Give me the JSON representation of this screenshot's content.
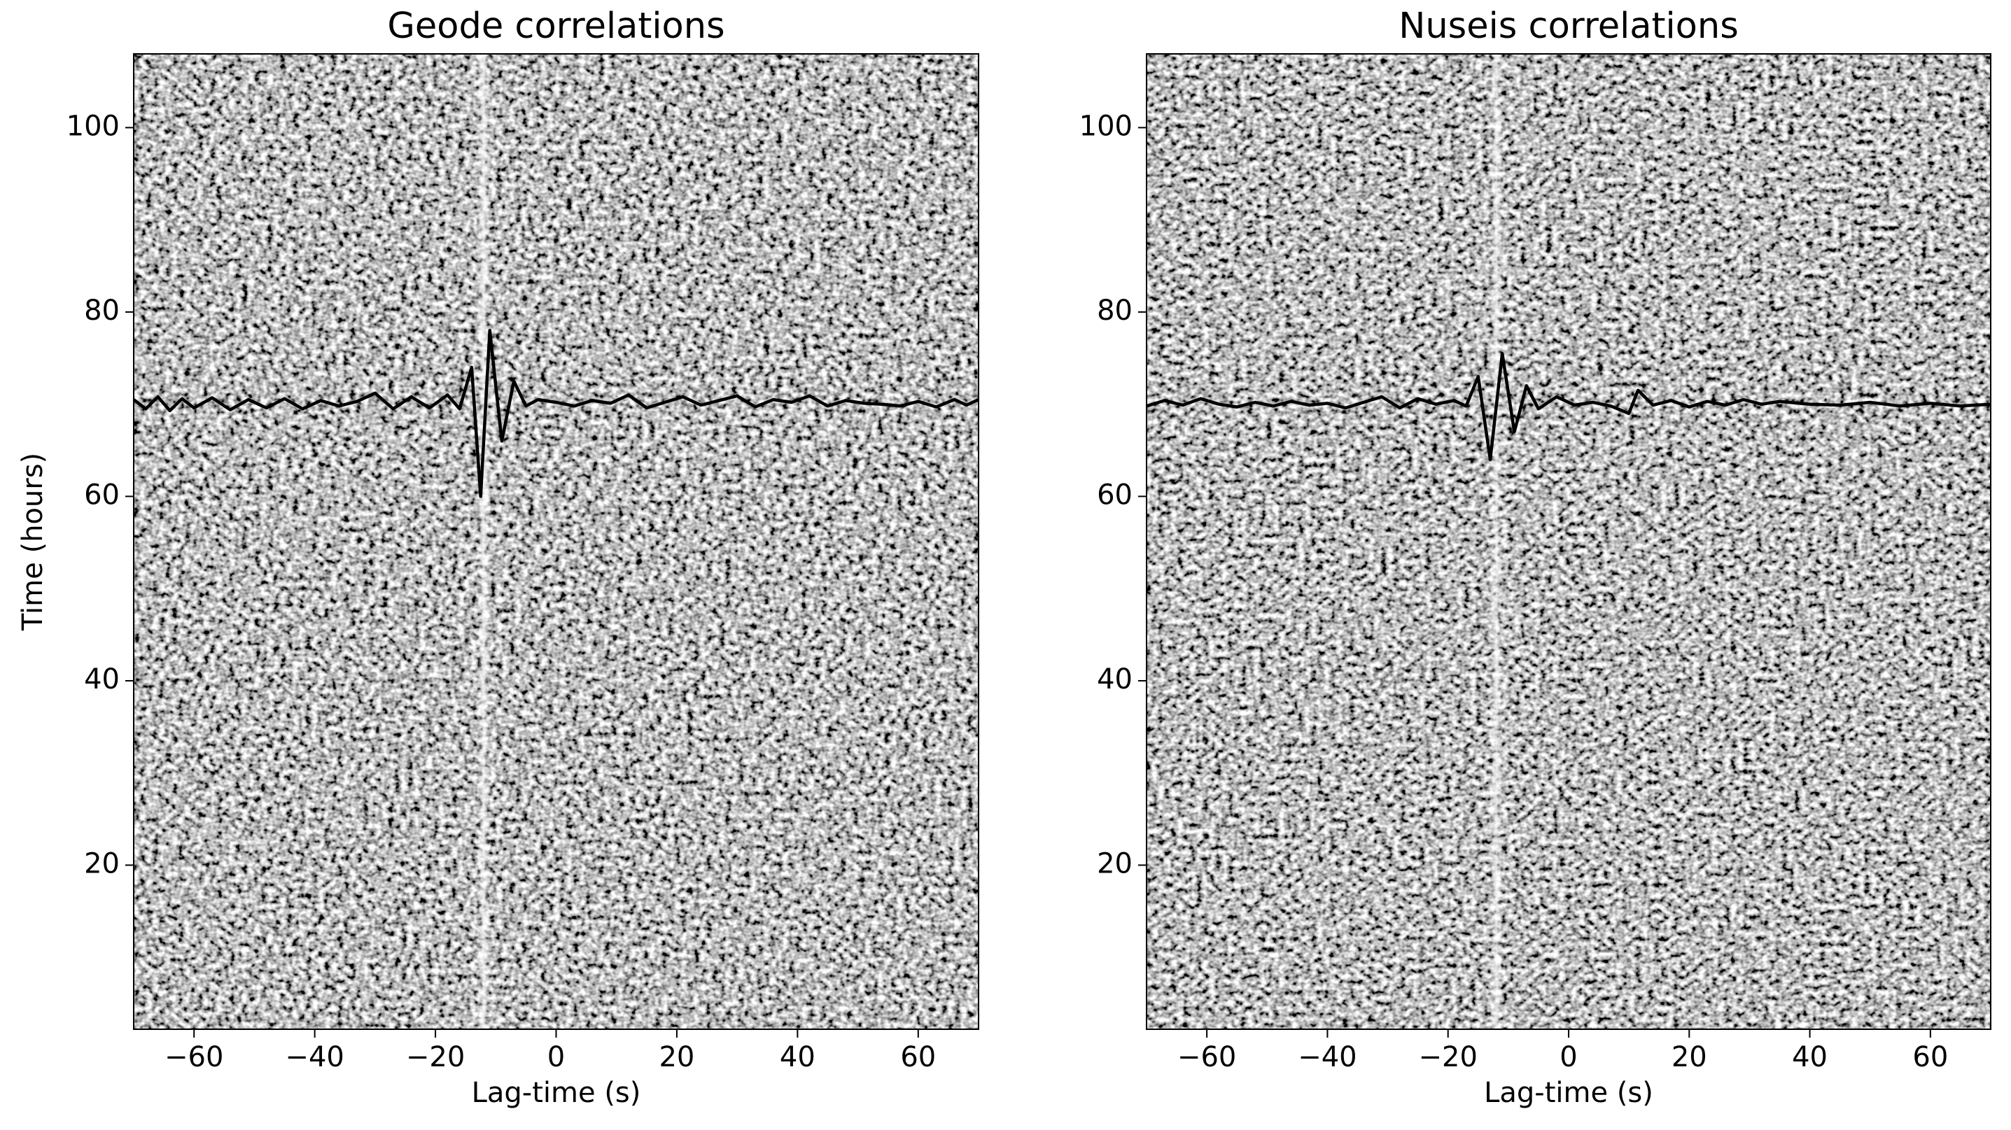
{
  "chart_data": [
    {
      "type": "line",
      "title": "Geode correlations",
      "xlabel": "Lag-time (s)",
      "ylabel": "Time (hours)",
      "color": "#000000",
      "xlim": [
        -70,
        70
      ],
      "ylim": [
        2.2,
        108
      ],
      "xticks": [
        {
          "value": -60,
          "label": "−60"
        },
        {
          "value": -40,
          "label": "−40"
        },
        {
          "value": -20,
          "label": "−20"
        },
        0,
        20,
        40,
        60
      ],
      "yticks": [
        20,
        40,
        60,
        80,
        100
      ],
      "x": [
        -70,
        -68,
        -66,
        -64,
        -62,
        -60,
        -57,
        -54,
        -51,
        -48,
        -45,
        -42,
        -39,
        -36,
        -33,
        -30,
        -27,
        -24,
        -21,
        -18,
        -16,
        -14,
        -12.5,
        -11,
        -9,
        -7,
        -5,
        -3,
        0,
        3,
        6,
        9,
        12,
        15,
        18,
        21,
        24,
        27,
        30,
        33,
        36,
        39,
        42,
        45,
        48,
        51,
        54,
        57,
        60,
        63,
        66,
        68,
        70
      ],
      "values": [
        70.5,
        69.5,
        70.8,
        69.3,
        70.6,
        69.6,
        70.7,
        69.4,
        70.5,
        69.6,
        70.6,
        69.5,
        70.4,
        69.8,
        70.3,
        71.2,
        69.5,
        70.8,
        69.6,
        71.0,
        69.5,
        74,
        60,
        78,
        66,
        72.5,
        69.8,
        70.5,
        70.2,
        69.8,
        70.4,
        70.1,
        71.0,
        69.6,
        70.2,
        70.8,
        69.9,
        70.4,
        70.9,
        69.7,
        70.5,
        70.2,
        70.9,
        69.8,
        70.4,
        70.1,
        70.0,
        69.8,
        70.3,
        69.7,
        70.5,
        69.9,
        70.5
      ]
    },
    {
      "type": "line",
      "title": "Nuseis correlations",
      "xlabel": "Lag-time (s)",
      "color": "#000000",
      "xlim": [
        -70,
        70
      ],
      "ylim": [
        2.2,
        108
      ],
      "xticks": [
        {
          "value": -60,
          "label": "−60"
        },
        {
          "value": -40,
          "label": "−40"
        },
        {
          "value": -20,
          "label": "−20"
        },
        0,
        20,
        40,
        60
      ],
      "yticks": [
        20,
        40,
        60,
        80,
        100
      ],
      "x": [
        -70,
        -67,
        -64,
        -61,
        -58,
        -55,
        -52,
        -49,
        -46,
        -43,
        -40,
        -37,
        -34,
        -31,
        -28,
        -25,
        -22,
        -19,
        -17,
        -15,
        -13,
        -11,
        -9,
        -7,
        -5,
        -2,
        1,
        4,
        7,
        10,
        11.5,
        14,
        17,
        20,
        23,
        26,
        29,
        32,
        35,
        40,
        45,
        50,
        55,
        60,
        65,
        70
      ],
      "values": [
        69.8,
        70.4,
        69.9,
        70.6,
        70.0,
        69.7,
        70.2,
        69.8,
        70.3,
        69.9,
        70.1,
        69.6,
        70.2,
        70.8,
        69.6,
        70.6,
        70.0,
        70.4,
        69.8,
        73,
        64,
        75.5,
        67,
        72,
        69.5,
        70.8,
        69.9,
        70.2,
        69.8,
        69,
        71.5,
        69.9,
        70.4,
        69.7,
        70.3,
        69.9,
        70.5,
        70.0,
        70.3,
        70.0,
        69.9,
        70.2,
        69.8,
        70.1,
        69.8,
        70.0
      ]
    }
  ]
}
